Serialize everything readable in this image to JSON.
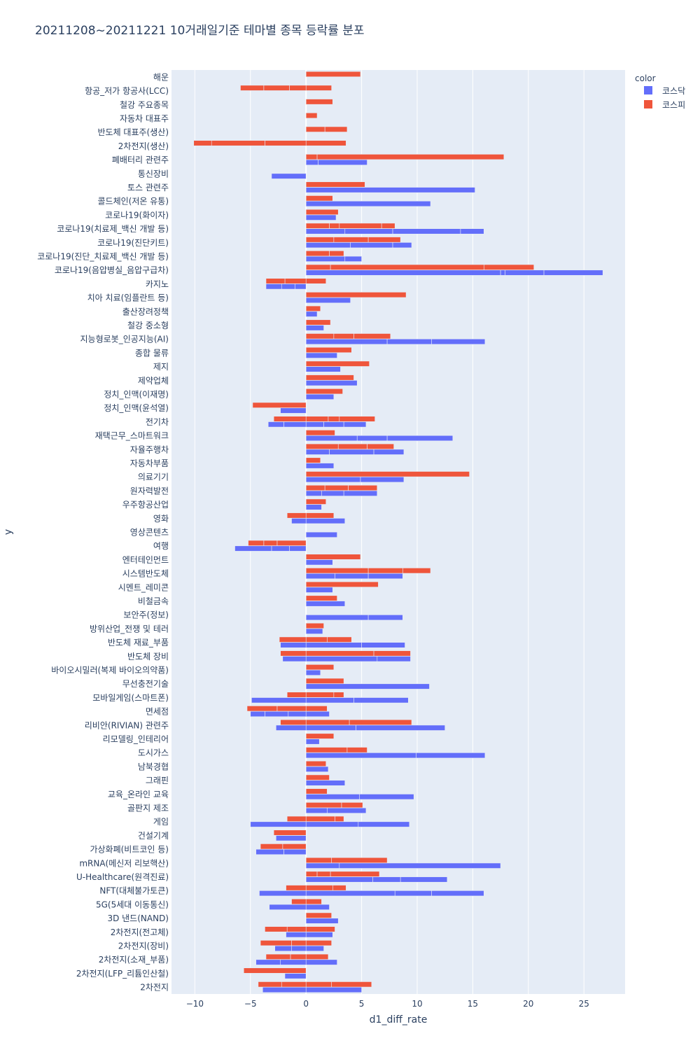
{
  "chart_data": {
    "type": "bar",
    "orientation": "horizontal",
    "barmode": "group-stacked",
    "title": "20211208~20211221 10거래일기준 테마별 종목 등락률 분포",
    "xlabel": "d1_diff_rate",
    "ylabel": "y",
    "xlim": [
      -12.1,
      28.7
    ],
    "xticks": [
      -10,
      -5,
      0,
      5,
      10,
      15,
      20,
      25
    ],
    "xtick_labels": [
      "−10",
      "−5",
      "0",
      "5",
      "10",
      "15",
      "20",
      "25"
    ],
    "grid": true,
    "legend": {
      "title": "color",
      "position": "top-right"
    },
    "colors": {
      "코스닥": "#636efa",
      "코스피": "#ef553b",
      "plot_bg": "#e5ecf6",
      "grid": "#ffffff"
    },
    "series": [
      {
        "name": "코스닥",
        "color": "#636efa"
      },
      {
        "name": "코스피",
        "color": "#ef553b"
      }
    ],
    "categories": [
      "해운",
      "항공_저가 항공사(LCC)",
      "철강 주요종목",
      "자동차 대표주",
      "반도체 대표주(생산)",
      "2차전지(생산)",
      "폐배터리 관련주",
      "통신장비",
      "토스 관련주",
      "콜드체인(저온 유통)",
      "코로나19(화이자)",
      "코로나19(치료제_백신 개발 등)",
      "코로나19(진단키트)",
      "코로나19(진단_치료제_백신 개발 등)",
      "코로나19(음압병실_음압구급차)",
      "카지노",
      "치아 치료(임플란트 등)",
      "출산장려정책",
      "철강 중소형",
      "지능형로봇_인공지능(AI)",
      "종합 물류",
      "제지",
      "제약업체",
      "정치_인맥(이재명)",
      "정치_인맥(윤석열)",
      "전기차",
      "재택근무_스마트워크",
      "자율주행차",
      "자동차부품",
      "의료기기",
      "원자력발전",
      "우주항공산업",
      "영화",
      "영상콘텐츠",
      "여행",
      "엔터테인먼트",
      "시스템반도체",
      "시멘트_레미콘",
      "비철금속",
      "보안주(정보)",
      "방위산업_전쟁 및 테러",
      "반도체 재료_부품",
      "반도체 장비",
      "바이오시밀러(복제 바이오의약품)",
      "무선충전기술",
      "모바일게임(스마트폰)",
      "면세점",
      "리비안(RIVIAN) 관련주",
      "리모델링_인테리어",
      "도시가스",
      "남북경협",
      "그래핀",
      "교육_온라인 교육",
      "골판지 제조",
      "게임",
      "건설기계",
      "가상화폐(비트코인 등)",
      "mRNA(메신저 리보핵산)",
      "U-Healthcare(원격진료)",
      "NFT(대체불가토큰)",
      "5G(5세대 이동통신)",
      "3D 낸드(NAND)",
      "2차전지(전고체)",
      "2차전지(장비)",
      "2차전지(소재_부품)",
      "2차전지(LFP_리튬인산철)",
      "2차전지"
    ],
    "segments": {
      "코스닥": [
        [],
        [],
        [],
        [],
        [],
        [],
        [
          1.1,
          4.4
        ],
        [
          -3.1
        ],
        [
          15.2
        ],
        [
          11.2
        ],
        [
          2.7
        ],
        [
          3.5,
          4.3,
          6.1,
          2.1
        ],
        [
          4.0,
          3.8,
          1.7
        ],
        [
          3.5,
          1.5
        ],
        [
          17.5,
          0.4,
          3.5,
          5.3
        ],
        [
          -1.0,
          -1.2,
          -1.4
        ],
        [
          4.0
        ],
        [
          1.0
        ],
        [
          1.6
        ],
        [
          7.3,
          4.0,
          4.8
        ],
        [
          2.8
        ],
        [
          3.1
        ],
        [
          4.6
        ],
        [
          2.5
        ],
        [
          -2.3
        ],
        [
          1.6,
          1.8,
          2.0,
          -2.0,
          -1.4
        ],
        [
          4.6,
          2.7,
          5.9
        ],
        [
          2.1,
          4.0,
          2.7
        ],
        [
          2.5
        ],
        [
          4.9,
          3.9
        ],
        [
          1.4,
          2.0,
          3.0
        ],
        [
          1.4
        ],
        [
          3.5,
          -1.3
        ],
        [
          2.8
        ],
        [
          -1.5,
          -1.6,
          -3.3
        ],
        [
          2.4
        ],
        [
          2.6,
          3.0,
          3.1
        ],
        [
          2.4
        ],
        [
          3.5
        ],
        [
          5.6,
          3.1
        ],
        [
          1.5
        ],
        [
          5.0,
          3.9,
          -2.3
        ],
        [
          6.4,
          3.0,
          -2.1
        ],
        [
          1.3
        ],
        [
          11.1
        ],
        [
          4.3,
          4.9,
          -4.9
        ],
        [
          2.1,
          -1.6,
          -2.1,
          -1.3
        ],
        [
          4.5,
          8.0,
          -2.7
        ],
        [
          1.2
        ],
        [
          9.9,
          6.2
        ],
        [
          2.0
        ],
        [
          3.5
        ],
        [
          4.8,
          4.9
        ],
        [
          1.9,
          3.5
        ],
        [
          4.7,
          4.6,
          -5.0
        ],
        [
          -2.7
        ],
        [
          -2.0,
          -2.5
        ],
        [
          3.0,
          14.5
        ],
        [
          6.0,
          2.5,
          4.2
        ],
        [
          8.0,
          3.3,
          4.7,
          -4.2
        ],
        [
          2.1,
          -3.3
        ],
        [
          2.9
        ],
        [
          2.4,
          -1.8
        ],
        [
          1.6,
          -1.3,
          -1.5
        ],
        [
          2.8,
          -2.3,
          -2.2
        ],
        [
          -1.9
        ],
        [
          5.0,
          -3.9
        ]
      ],
      "코스피": [
        [
          4.9
        ],
        [
          2.3,
          -1.5,
          -2.3,
          -2.1
        ],
        [
          2.4
        ],
        [
          1.0
        ],
        [
          1.7,
          2.0
        ],
        [
          3.6,
          -3.7,
          -4.8,
          -1.6
        ],
        [
          1.0,
          16.8
        ],
        [],
        [
          5.3
        ],
        [
          2.4
        ],
        [
          2.9
        ],
        [
          2.1,
          0.9,
          3.8,
          1.2
        ],
        [
          2.5,
          3.1,
          2.9
        ],
        [
          2.1,
          1.3
        ],
        [
          2.2,
          13.8,
          4.5
        ],
        [
          1.8,
          -1.9,
          -1.7
        ],
        [
          9.0
        ],
        [
          1.3
        ],
        [
          2.2
        ],
        [
          2.5,
          1.8,
          3.3
        ],
        [
          4.1
        ],
        [
          5.7
        ],
        [
          4.3
        ],
        [
          3.3
        ],
        [
          -4.8
        ],
        [
          2.0,
          1.0,
          3.2,
          -2.9
        ],
        [
          2.6
        ],
        [
          2.9,
          2.6,
          2.4
        ],
        [
          1.3
        ],
        [
          14.7
        ],
        [
          1.7,
          2.1,
          2.6
        ],
        [
          1.8
        ],
        [
          2.5,
          -1.7
        ],
        [],
        [
          -2.6,
          -1.2,
          -1.4
        ],
        [
          4.9
        ],
        [
          5.6,
          3.1,
          2.5
        ],
        [
          6.5
        ],
        [
          2.8
        ],
        [],
        [
          1.6
        ],
        [
          1.9,
          2.2,
          -2.4
        ],
        [
          6.1,
          3.3,
          -2.3
        ],
        [
          2.5
        ],
        [
          3.4
        ],
        [
          2.5,
          0.9,
          -1.7
        ],
        [
          1.9,
          -2.6,
          -2.7
        ],
        [
          3.9,
          5.6,
          -2.3
        ],
        [
          2.5
        ],
        [
          3.7,
          1.8
        ],
        [
          1.8
        ],
        [
          2.1
        ],
        [
          1.9
        ],
        [
          3.2,
          1.9
        ],
        [
          2.6,
          0.8,
          -1.7
        ],
        [
          -2.9
        ],
        [
          -2.1,
          -2.0
        ],
        [
          2.3,
          5.0
        ],
        [
          1.0,
          1.2,
          4.4
        ],
        [
          2.4,
          1.2,
          -1.8
        ],
        [
          1.4,
          -1.3
        ],
        [
          2.3
        ],
        [
          2.6,
          -1.7,
          -2.0
        ],
        [
          2.3,
          -1.3,
          -2.8
        ],
        [
          2.0,
          -1.4,
          -2.2
        ],
        [
          -5.6
        ],
        [
          2.3,
          3.6,
          -2.2,
          -2.1
        ]
      ]
    }
  }
}
